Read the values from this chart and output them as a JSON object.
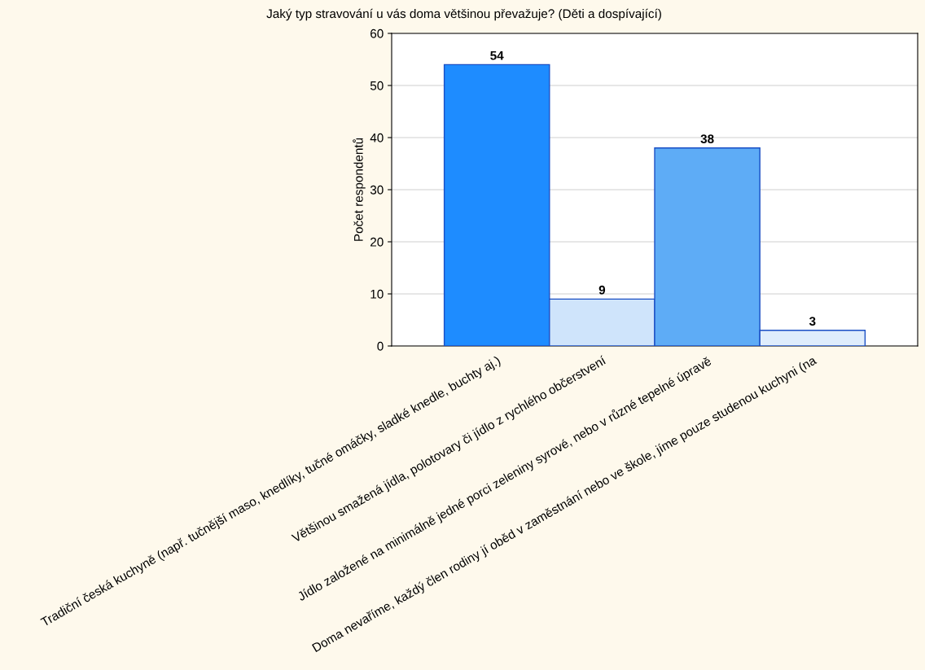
{
  "chart_data": {
    "type": "bar",
    "title": "Jaký typ stravování u vás doma většinou převažuje? (Děti a dospívající)",
    "ylabel": "Počet respondentů",
    "categories": [
      "Tradiční česká kuchyně (např. tučnější maso, knedlíky, tučné omáčky, sladké knedle, buchty aj.)",
      "Většinou smažená jídla, polotovary či jídlo z rychlého občerstvení",
      "Jídlo založené na minimálně jedné porci zeleniny syrové, nebo v různé tepelné úpravě",
      "Doma nevaříme, každý člen rodiny jí oběd v zaměstnání nebo ve škole, jíme pouze studenou kuchyni (na"
    ],
    "values": [
      54,
      9,
      38,
      3
    ],
    "colors": [
      "#1e8cff",
      "#cfe4fb",
      "#5eacf6",
      "#dfedfc"
    ],
    "ylim": [
      0,
      60
    ],
    "yticks": [
      0,
      10,
      20,
      30,
      40,
      50,
      60
    ],
    "grid": "y",
    "data_labels": true
  }
}
